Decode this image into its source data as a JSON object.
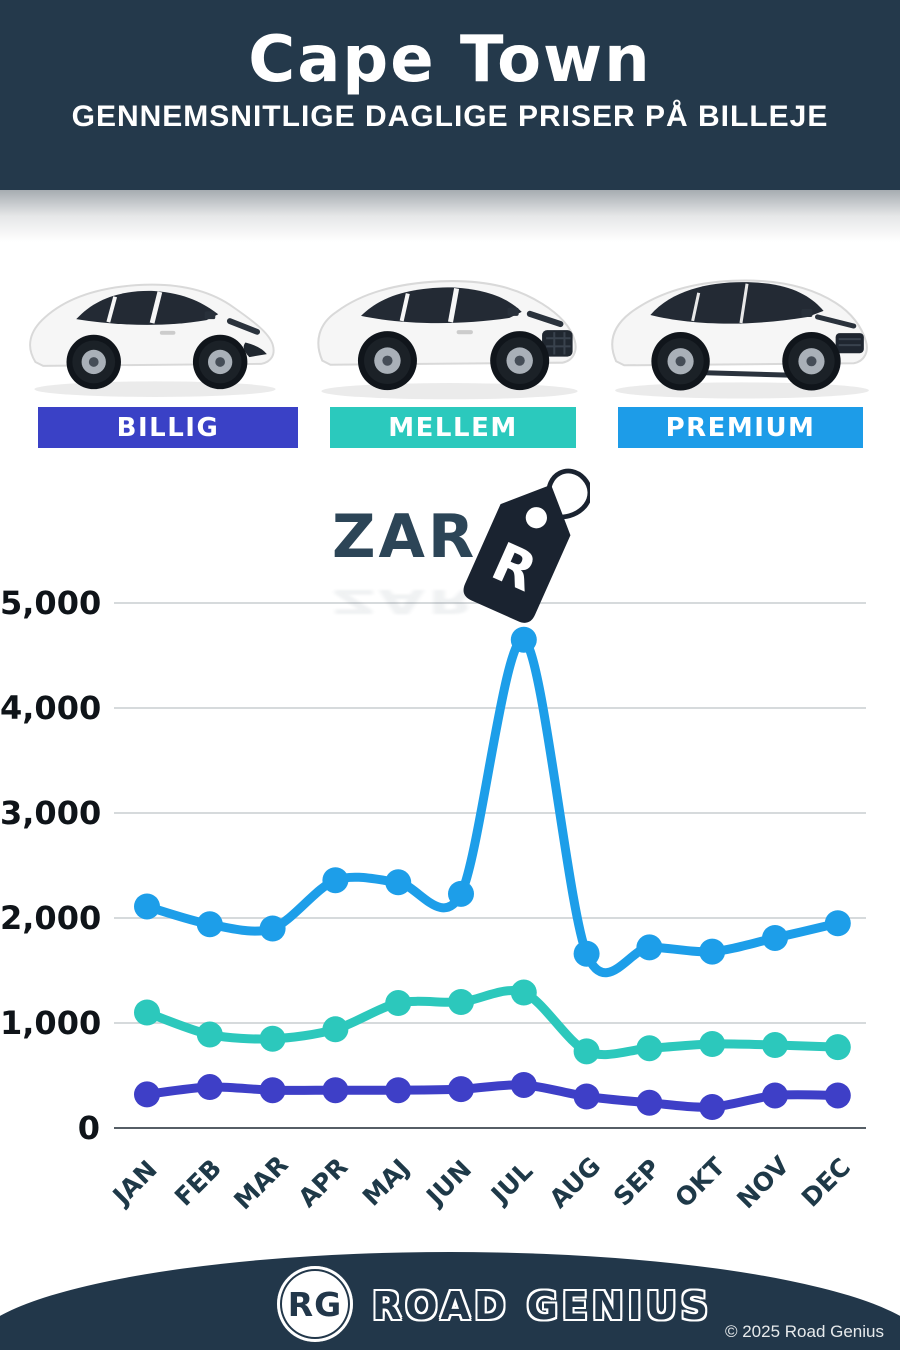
{
  "header": {
    "title": "Cape Town",
    "subtitle": "GENNEMSNITLIGE DAGLIGE PRISER PÅ BILLEJE"
  },
  "categories": [
    {
      "label": "BILLIG",
      "color": "#3a41c6",
      "car_icon": "hatchback-car-icon"
    },
    {
      "label": "MELLEM",
      "color": "#2bc9bd",
      "car_icon": "suv-car-icon"
    },
    {
      "label": "PREMIUM",
      "color": "#1d9ce8",
      "car_icon": "premium-suv-car-icon"
    }
  ],
  "currency": {
    "code": "ZAR",
    "tag_letter": "R"
  },
  "chart_data": {
    "type": "line",
    "x": [
      "JAN",
      "FEB",
      "MAR",
      "APR",
      "MAJ",
      "JUN",
      "JUL",
      "AUG",
      "SEP",
      "OKT",
      "NOV",
      "DEC"
    ],
    "series": [
      {
        "name": "PREMIUM",
        "color": "#1d9ee9",
        "values": [
          2110,
          1940,
          1900,
          2360,
          2340,
          2230,
          4650,
          1660,
          1720,
          1680,
          1810,
          1950
        ]
      },
      {
        "name": "MELLEM",
        "color": "#2cc8bc",
        "values": [
          1100,
          890,
          850,
          940,
          1190,
          1200,
          1290,
          730,
          760,
          800,
          790,
          770
        ]
      },
      {
        "name": "BILLIG",
        "color": "#3e3fc7",
        "values": [
          320,
          390,
          360,
          360,
          360,
          370,
          410,
          300,
          240,
          200,
          310,
          310
        ]
      }
    ],
    "title": "",
    "xlabel": "",
    "ylabel": "",
    "ylim": [
      0,
      5000
    ],
    "yticks": [
      0,
      1000,
      2000,
      3000,
      4000,
      5000
    ],
    "ytick_labels": [
      "0",
      "1,000",
      "2,000",
      "3,000",
      "4,000",
      "5,000"
    ],
    "grid": true,
    "legend_position": "none"
  },
  "footer": {
    "badge": "RG",
    "brand": "ROAD GENIUS",
    "copyright": "© 2025 Road Genius"
  }
}
